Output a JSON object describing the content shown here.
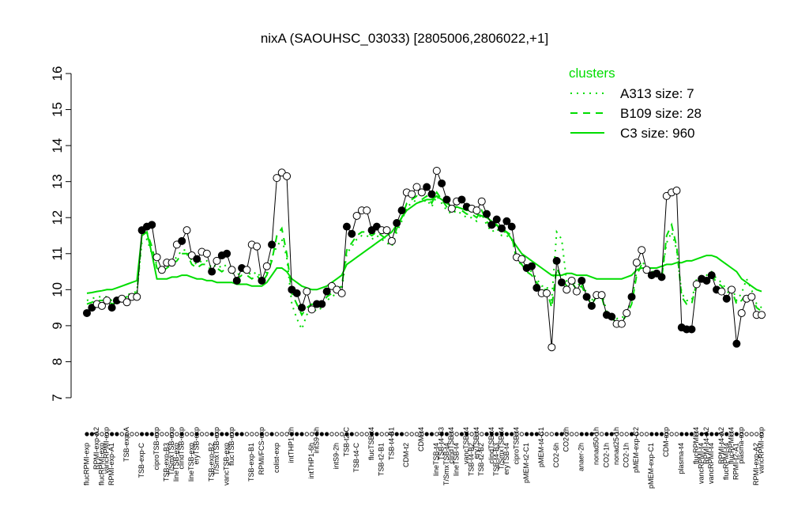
{
  "chart_data": {
    "type": "line",
    "title": "nixA (SAOUHSC_03033) [2805006,2806022,+1]",
    "categories": [
      "flucRPMI-exp",
      null,
      "RPMI-exp-A2",
      "flucRPMI-exp",
      "vancRPMI-exp",
      "RPMI-exp-A1",
      null,
      null,
      "TSB-exp-A",
      null,
      null,
      "TSB-exp-C",
      null,
      null,
      "ciproTSB-exp",
      null,
      "TSB-exp-B3",
      "T/SmxTSB-exp",
      "lineTSB-exp",
      "clindTSB-exp",
      null,
      "lineTSB-exp",
      "eryTSB-exp",
      null,
      null,
      "TSB-exp-B2",
      "T/SmxTSB-exp",
      null,
      "vancTSB-exp",
      "flucTSB-exp",
      null,
      null,
      null,
      "TSB-exp-B1",
      null,
      "RPMI/FCS-exp",
      null,
      null,
      "colist-exp",
      null,
      null,
      "intTHP1-2h",
      null,
      null,
      null,
      "intTHP1-6h",
      "intS9-6h",
      null,
      null,
      null,
      "intS9-2h",
      null,
      "TSB-t2-C",
      null,
      "TSB-t4-C",
      null,
      null,
      "flucTSB-t4",
      null,
      "TSB-t2-B1",
      null,
      "TSB-t4-B1",
      null,
      null,
      "CDM-t2",
      null,
      null,
      "CDM-t4",
      null,
      null,
      "lineTSB-t4",
      "TSB-t4-B3",
      "T/SmxTSB-t4",
      "clindTSB-t4",
      "lineTSB-t4",
      null,
      "vancTSB-t4",
      "TSB-t4-B2",
      "eryTSB-t4",
      "TSB-t2-B2",
      null,
      "clindTSB-t4",
      "TSB-t4-B3",
      "T/SmxTSB-t4",
      "eryTSB-t4",
      null,
      "ciproTSB-t4",
      null,
      "pMEM-t2-C1",
      null,
      null,
      "pMEM-t4-C1",
      null,
      null,
      "CO2-6h",
      null,
      "CO2-2h",
      null,
      null,
      "anaer-2h",
      null,
      null,
      "nonad50-1h",
      null,
      "CO2-1h",
      null,
      "nonad25-1h",
      null,
      "CO2-1h",
      null,
      "pMEM-exp-C2",
      null,
      null,
      "pMEM-exp-C1",
      null,
      null,
      "CDM-exp",
      null,
      null,
      "plasma-t4",
      null,
      null,
      "flucRPMI-t4",
      "vancRPMI-t4",
      "RPMI-t4-A2",
      "vancRPMI-t4",
      null,
      "RPMI-t4-A2",
      "flucRPMI-t4",
      "flucRPMI-t4",
      "RPMI-t2-A1",
      "plasma-exp",
      null,
      null,
      "RPMI-exp-A2",
      "vancRPMI-exp"
    ],
    "values": [
      9.35,
      9.5,
      9.6,
      9.55,
      9.7,
      9.5,
      9.7,
      9.75,
      9.65,
      9.8,
      9.8,
      11.65,
      11.75,
      11.8,
      10.9,
      10.55,
      10.75,
      10.75,
      11.25,
      11.35,
      11.65,
      10.95,
      10.85,
      11.05,
      11.0,
      10.5,
      10.8,
      10.95,
      11.0,
      10.55,
      10.25,
      10.6,
      10.55,
      11.25,
      11.2,
      10.25,
      10.65,
      11.25,
      13.1,
      13.25,
      13.15,
      10.0,
      9.9,
      9.5,
      9.95,
      9.45,
      9.6,
      9.6,
      9.95,
      10.1,
      10.0,
      9.9,
      11.75,
      11.55,
      12.05,
      12.2,
      12.2,
      11.65,
      11.75,
      11.65,
      11.65,
      11.35,
      11.85,
      12.2,
      12.7,
      12.65,
      12.85,
      12.7,
      12.85,
      12.65,
      13.3,
      12.95,
      12.5,
      12.25,
      12.45,
      12.5,
      12.3,
      12.25,
      12.2,
      12.45,
      12.1,
      11.8,
      11.95,
      11.7,
      11.9,
      11.75,
      10.9,
      10.85,
      10.6,
      10.65,
      10.05,
      9.9,
      9.9,
      8.4,
      10.8,
      10.2,
      10.0,
      10.25,
      9.95,
      10.25,
      9.8,
      9.55,
      9.85,
      9.85,
      9.3,
      9.25,
      9.05,
      9.05,
      9.35,
      9.8,
      10.75,
      11.1,
      10.55,
      10.4,
      10.45,
      10.35,
      12.6,
      12.7,
      12.75,
      8.95,
      8.9,
      8.9,
      10.15,
      10.3,
      10.25,
      10.4,
      10.0,
      9.95,
      9.75,
      10.0,
      8.5,
      9.35,
      9.75,
      9.8,
      9.3,
      9.3
    ],
    "point_colors": [
      "#000",
      "#000",
      "#fff",
      "#fff",
      "#fff",
      "#000",
      "#000",
      "#fff",
      "#fff",
      "#fff",
      "#fff",
      "#000",
      "#000",
      "#000",
      "#fff",
      "#fff",
      "#fff",
      "#fff",
      "#fff",
      "#000",
      "#fff",
      "#fff",
      "#000",
      "#fff",
      "#fff",
      "#000",
      "#fff",
      "#000",
      "#000",
      "#fff",
      "#000",
      "#000",
      "#fff",
      "#fff",
      "#fff",
      "#000",
      "#fff",
      "#000",
      "#fff",
      "#fff",
      "#fff",
      "#000",
      "#000",
      "#000",
      "#fff",
      "#fff",
      "#000",
      "#000",
      "#000",
      "#fff",
      "#fff",
      "#fff",
      "#000",
      "#000",
      "#fff",
      "#fff",
      "#fff",
      "#000",
      "#000",
      "#fff",
      "#fff",
      "#fff",
      "#000",
      "#000",
      "#fff",
      "#fff",
      "#fff",
      "#fff",
      "#000",
      "#000",
      "#fff",
      "#000",
      "#000",
      "#fff",
      "#fff",
      "#000",
      "#000",
      "#fff",
      "#fff",
      "#fff",
      "#000",
      "#000",
      "#000",
      "#000",
      "#000",
      "#000",
      "#fff",
      "#fff",
      "#000",
      "#000",
      "#000",
      "#fff",
      "#fff",
      "#fff",
      "#000",
      "#000",
      "#fff",
      "#fff",
      "#fff",
      "#000",
      "#000",
      "#000",
      "#fff",
      "#fff",
      "#000",
      "#000",
      "#fff",
      "#fff",
      "#fff",
      "#000",
      "#fff",
      "#fff",
      "#fff",
      "#000",
      "#000",
      "#000",
      "#fff",
      "#fff",
      "#fff",
      "#000",
      "#000",
      "#000",
      "#fff",
      "#000",
      "#000",
      "#000",
      "#000",
      "#fff",
      "#000",
      "#fff",
      "#000",
      "#fff",
      "#fff",
      "#fff",
      "#fff",
      "#fff"
    ],
    "line_color": "#000000",
    "legend_title": "clusters",
    "legend": "topright",
    "series": [
      {
        "name": "A313 size: 7",
        "color": "#00dd00",
        "dash": "2,6",
        "values": [
          9.7,
          9.75,
          9.8,
          9.8,
          9.8,
          9.7,
          9.75,
          9.8,
          9.85,
          9.9,
          9.95,
          11.3,
          11.4,
          11.0,
          10.7,
          10.6,
          10.7,
          10.8,
          10.9,
          11.1,
          11.1,
          10.8,
          10.7,
          10.8,
          10.8,
          10.6,
          10.7,
          10.6,
          10.7,
          10.6,
          10.4,
          10.5,
          10.5,
          10.4,
          10.5,
          10.3,
          10.5,
          10.9,
          11.2,
          11.4,
          10.9,
          9.6,
          9.2,
          8.9,
          9.3,
          9.5,
          9.4,
          9.5,
          9.7,
          9.8,
          9.9,
          10.0,
          11.0,
          11.2,
          11.4,
          11.5,
          11.5,
          11.4,
          11.5,
          11.4,
          11.3,
          11.2,
          11.6,
          11.9,
          12.3,
          12.4,
          12.5,
          12.4,
          12.5,
          12.3,
          12.6,
          12.4,
          12.2,
          12.1,
          12.2,
          12.1,
          12.0,
          12.0,
          11.9,
          12.1,
          11.8,
          11.6,
          11.7,
          11.5,
          11.5,
          11.4,
          10.9,
          10.8,
          10.6,
          10.5,
          10.3,
          10.1,
          10.1,
          9.7,
          11.6,
          11.4,
          10.2,
          10.3,
          10.1,
          10.2,
          9.9,
          9.7,
          9.9,
          9.9,
          9.4,
          9.3,
          9.2,
          9.2,
          9.4,
          9.7,
          10.5,
          10.8,
          10.6,
          10.5,
          10.5,
          10.4,
          11.3,
          11.6,
          11.1,
          9.9,
          9.7,
          9.7,
          10.3,
          10.4,
          10.4,
          10.5,
          10.3,
          10.2,
          10.0,
          10.1,
          9.7,
          9.9,
          10.3,
          10.0,
          9.6,
          9.5
        ]
      },
      {
        "name": "B109 size: 28",
        "color": "#00dd00",
        "dash": "9,7",
        "values": [
          9.6,
          9.65,
          9.7,
          9.7,
          9.72,
          9.6,
          9.65,
          9.75,
          9.8,
          9.85,
          9.9,
          11.5,
          11.6,
          11.2,
          10.6,
          10.5,
          10.6,
          10.7,
          10.8,
          11.0,
          11.0,
          10.7,
          10.6,
          10.7,
          10.7,
          10.5,
          10.6,
          10.5,
          10.6,
          10.5,
          10.3,
          10.4,
          10.4,
          10.3,
          10.4,
          10.2,
          10.4,
          10.8,
          11.5,
          11.7,
          11.0,
          9.9,
          9.6,
          9.3,
          9.5,
          9.6,
          9.5,
          9.6,
          9.8,
          9.9,
          10.0,
          10.1,
          11.1,
          11.3,
          11.5,
          11.6,
          11.6,
          11.5,
          11.6,
          11.5,
          11.4,
          11.3,
          11.7,
          12.0,
          12.4,
          12.5,
          12.6,
          12.5,
          12.6,
          12.4,
          12.7,
          12.5,
          12.3,
          12.2,
          12.3,
          12.2,
          12.1,
          12.1,
          12.0,
          12.2,
          11.9,
          11.7,
          11.8,
          11.6,
          11.6,
          11.5,
          10.8,
          10.7,
          10.5,
          10.4,
          10.2,
          10.0,
          10.0,
          9.5,
          10.6,
          10.3,
          10.1,
          10.2,
          10.0,
          10.1,
          9.8,
          9.6,
          9.8,
          9.8,
          9.3,
          9.2,
          9.1,
          9.1,
          9.3,
          9.6,
          10.4,
          10.7,
          10.5,
          10.4,
          10.4,
          10.3,
          11.5,
          11.8,
          11.2,
          9.8,
          9.6,
          9.6,
          10.2,
          10.3,
          10.3,
          10.4,
          10.2,
          10.1,
          9.9,
          10.0,
          9.6,
          9.7,
          9.9,
          9.8,
          9.5,
          9.4
        ]
      },
      {
        "name": "C3 size: 960",
        "color": "#00dd00",
        "dash": "none",
        "values": [
          9.9,
          9.92,
          9.95,
          9.97,
          10.0,
          10.0,
          10.05,
          10.1,
          10.15,
          10.2,
          10.25,
          11.5,
          11.6,
          11.0,
          10.3,
          10.3,
          10.3,
          10.35,
          10.35,
          10.4,
          10.4,
          10.35,
          10.3,
          10.3,
          10.25,
          10.25,
          10.2,
          10.2,
          10.2,
          10.2,
          10.15,
          10.15,
          10.15,
          10.1,
          10.1,
          10.1,
          10.2,
          10.4,
          10.6,
          10.6,
          10.5,
          10.3,
          10.2,
          10.1,
          10.05,
          10.0,
          10.0,
          10.05,
          10.1,
          10.2,
          10.3,
          10.4,
          10.7,
          10.8,
          10.9,
          11.0,
          11.1,
          11.2,
          11.3,
          11.4,
          11.5,
          11.6,
          11.8,
          12.0,
          12.2,
          12.3,
          12.4,
          12.45,
          12.5,
          12.5,
          12.6,
          12.5,
          12.4,
          12.3,
          12.3,
          12.25,
          12.2,
          12.2,
          12.1,
          12.05,
          12.0,
          11.9,
          11.8,
          11.7,
          11.6,
          11.4,
          11.2,
          11.0,
          10.9,
          10.8,
          10.7,
          10.6,
          10.5,
          10.4,
          10.4,
          10.4,
          10.45,
          10.45,
          10.4,
          10.4,
          10.4,
          10.35,
          10.3,
          10.3,
          10.3,
          10.3,
          10.3,
          10.3,
          10.35,
          10.4,
          10.55,
          10.6,
          10.6,
          10.6,
          10.6,
          10.65,
          10.7,
          10.7,
          10.75,
          10.75,
          10.8,
          10.8,
          10.85,
          10.9,
          10.95,
          10.95,
          10.9,
          10.8,
          10.7,
          10.6,
          10.5,
          10.3,
          10.2,
          10.1,
          10.0,
          9.95
        ]
      }
    ],
    "ylim": [
      7,
      16
    ],
    "yticks": [
      7,
      8,
      9,
      10,
      11,
      12,
      13,
      14,
      15,
      16
    ]
  }
}
